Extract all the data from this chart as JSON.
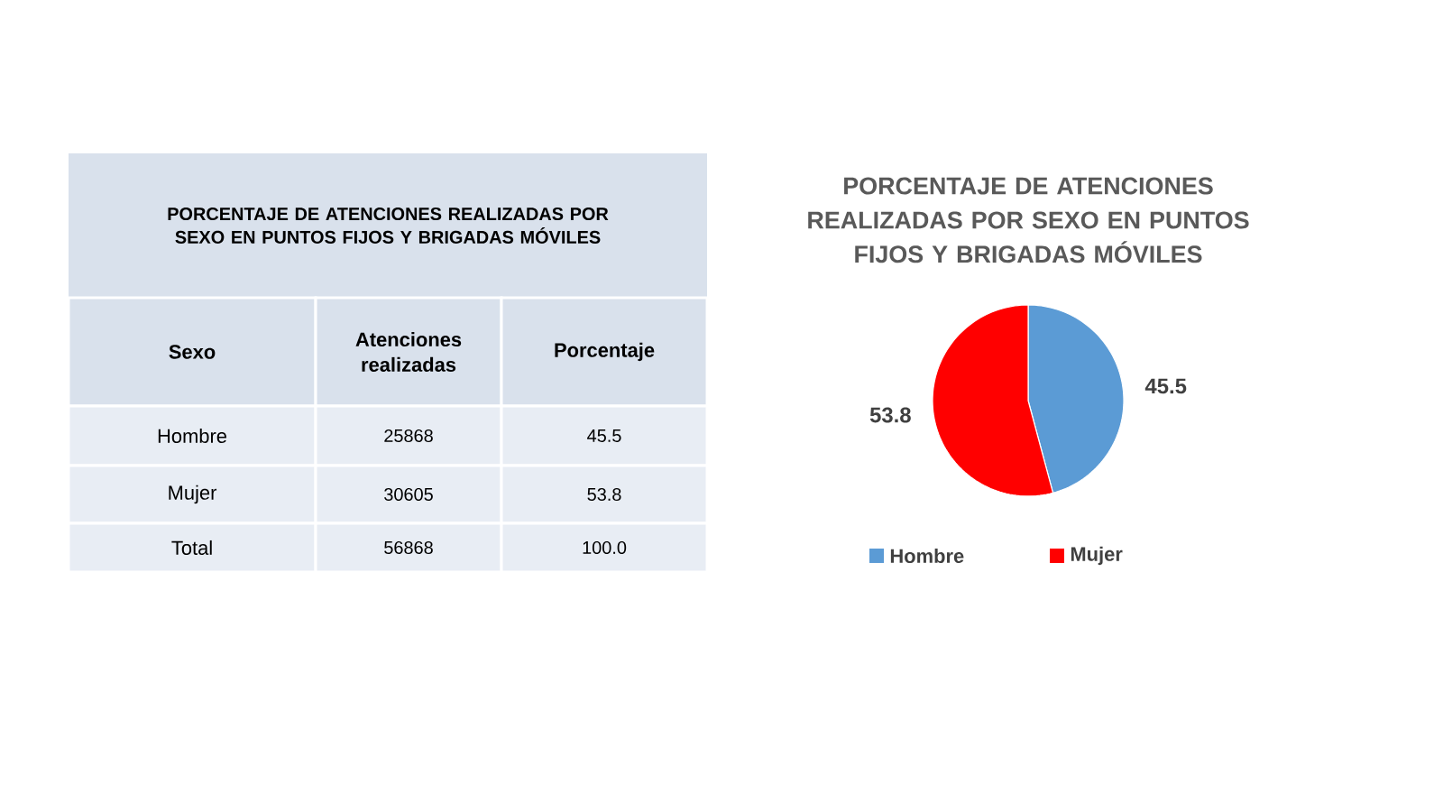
{
  "chart_data": [
    {
      "type": "other",
      "title": "PORCENTAJE DE ATENCIONES REALIZADAS POR SEXO EN PUNTOS FIJOS Y BRIGADAS MÓVILES",
      "annotations": [
        "Sexo",
        "Atenciones realizadas",
        "Porcentaje",
        "Hombre",
        "25868",
        "45.5",
        "Mujer",
        "30605",
        "53.8",
        "Total",
        "56868",
        "100.0"
      ]
    },
    {
      "type": "pie",
      "title": "PORCENTAJE DE ATENCIONES REALIZADAS POR SEXO EN PUNTOS FIJOS Y BRIGADAS MÓVILES",
      "categories": [
        "Hombre",
        "Mujer"
      ],
      "values": [
        45.5,
        53.8
      ],
      "colors": [
        "#5b9bd5",
        "#ff0000"
      ],
      "data_labels": true,
      "legend": "bottom"
    }
  ]
}
